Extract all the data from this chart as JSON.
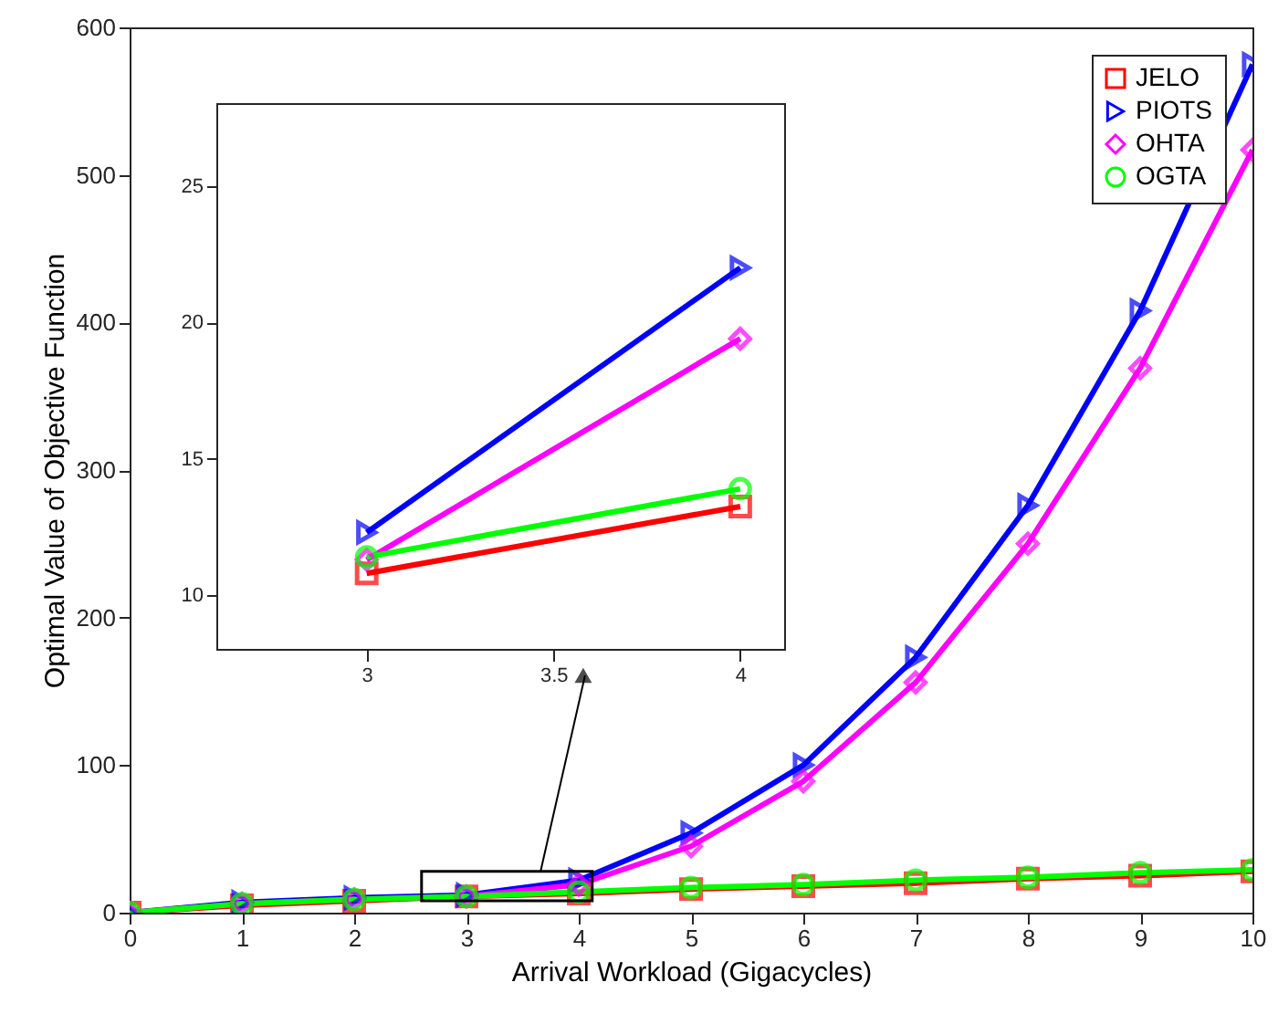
{
  "chart_data": [
    {
      "type": "line",
      "xlabel": "Arrival Workload (Gigacycles)",
      "ylabel": "Optimal Value of Objective Function",
      "x": [
        0,
        1,
        2,
        3,
        4,
        5,
        6,
        7,
        8,
        9,
        10
      ],
      "xlim": [
        0,
        10
      ],
      "xticks": [
        0,
        1,
        2,
        3,
        4,
        5,
        6,
        7,
        8,
        9,
        10
      ],
      "ylim": [
        0,
        600
      ],
      "yticks": [
        0,
        100,
        200,
        300,
        400,
        500,
        600
      ],
      "grid": false,
      "legend": "top right",
      "line_style": "solid",
      "series": [
        {
          "name": "JELO",
          "color": "#ff0000",
          "marker": "square",
          "values": [
            0,
            5,
            8,
            11,
            13,
            16,
            18,
            20,
            23,
            25,
            28
          ]
        },
        {
          "name": "PIOTS",
          "color": "#0000ff",
          "marker": "triangle",
          "values": [
            0,
            7,
            10,
            12,
            22,
            54,
            100,
            173,
            276,
            408,
            575
          ]
        },
        {
          "name": "OHTA",
          "color": "#ff00ff",
          "marker": "diamond",
          "values": [
            0,
            6,
            9,
            11,
            19,
            45,
            89,
            156,
            250,
            369,
            517
          ]
        },
        {
          "name": "OGTA",
          "color": "#00ff00",
          "marker": "circle",
          "values": [
            0,
            6,
            9,
            11,
            14,
            17,
            19,
            22,
            24,
            27,
            29
          ]
        }
      ]
    },
    {
      "type": "line",
      "x": [
        3,
        4
      ],
      "xlim": [
        2.6,
        4.12
      ],
      "xticks": [
        3,
        3.5,
        4
      ],
      "ylim": [
        8,
        28
      ],
      "yticks": [
        10,
        15,
        20,
        25
      ],
      "grid": false,
      "line_style": "solid",
      "series": [
        {
          "color": "#ff0000",
          "marker": "square",
          "values": [
            10.8,
            13.25
          ]
        },
        {
          "color": "#0000ff",
          "marker": "triangle",
          "values": [
            12.3,
            22
          ]
        },
        {
          "color": "#ff00ff",
          "marker": "diamond",
          "values": [
            11.3,
            19.4
          ]
        },
        {
          "color": "#00ff00",
          "marker": "circle",
          "values": [
            11.4,
            13.9
          ]
        }
      ]
    }
  ]
}
